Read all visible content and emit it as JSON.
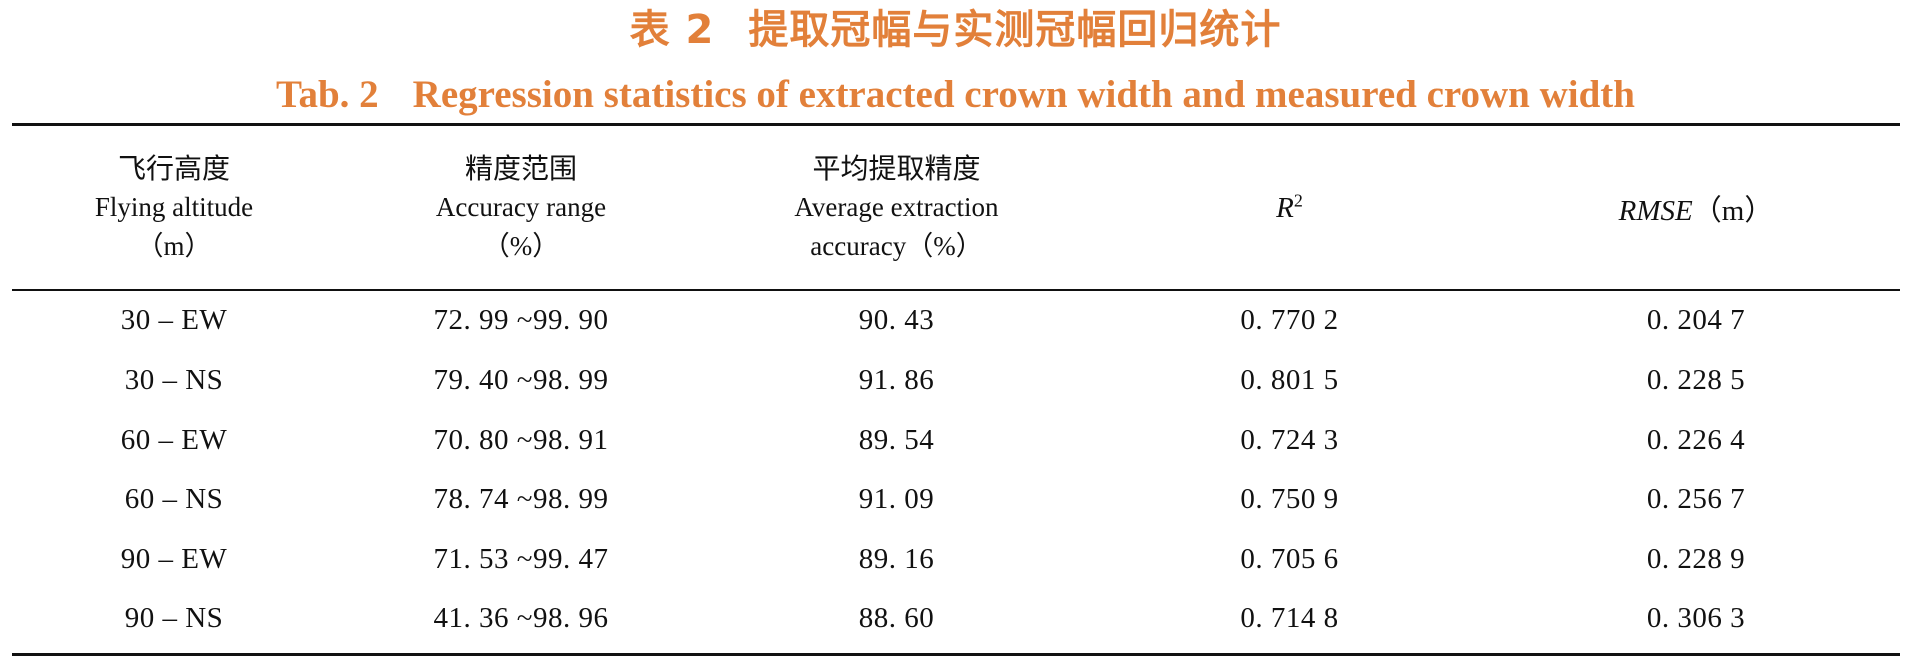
{
  "caption": {
    "zh_label": "表 2",
    "zh_text": "提取冠幅与实测冠幅回归统计",
    "en_label": "Tab. 2",
    "en_text": "Regression statistics of extracted crown width and measured crown width"
  },
  "table": {
    "headers": [
      {
        "zh": "飞行高度",
        "en": [
          "Flying altitude",
          "（m）"
        ]
      },
      {
        "zh": "精度范围",
        "en": [
          "Accuracy range",
          "（%）"
        ]
      },
      {
        "zh": "平均提取精度",
        "en": [
          "Average extraction",
          "accuracy（%）"
        ]
      },
      {
        "var": "R",
        "sup": "2",
        "unit": ""
      },
      {
        "var": "RMSE",
        "sup": "",
        "unit": "（m）"
      }
    ],
    "rows": [
      [
        "30 – EW",
        "72. 99 ~99. 90",
        "90. 43",
        "0. 770 2",
        "0. 204 7"
      ],
      [
        "30 – NS",
        "79. 40 ~98. 99",
        "91. 86",
        "0. 801 5",
        "0. 228 5"
      ],
      [
        "60 – EW",
        "70. 80 ~98. 91",
        "89. 54",
        "0. 724 3",
        "0. 226 4"
      ],
      [
        "60 – NS",
        "78. 74 ~98. 99",
        "91. 09",
        "0. 750 9",
        "0. 256 7"
      ],
      [
        "90 – EW",
        "71. 53 ~99. 47",
        "89. 16",
        "0. 705 6",
        "0. 228 9"
      ],
      [
        "90 – NS",
        "41. 36 ~98. 96",
        "88. 60",
        "0. 714 8",
        "0. 306 3"
      ]
    ]
  }
}
